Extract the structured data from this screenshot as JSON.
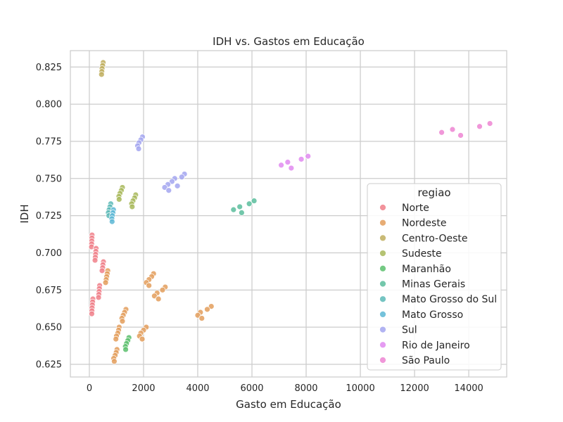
{
  "chart_data": {
    "type": "scatter",
    "title": "IDH vs. Gastos em Educação",
    "xlabel": "Gasto em Educação",
    "ylabel": "IDH",
    "xlim": [
      -700,
      15400
    ],
    "ylim": [
      0.6165,
      0.836
    ],
    "xticks": [
      0,
      2000,
      4000,
      6000,
      8000,
      10000,
      12000,
      14000
    ],
    "yticks": [
      0.625,
      0.65,
      0.675,
      0.7,
      0.725,
      0.75,
      0.775,
      0.8,
      0.825
    ],
    "ytick_labels": [
      "0.625",
      "0.650",
      "0.675",
      "0.700",
      "0.725",
      "0.750",
      "0.775",
      "0.800",
      "0.825"
    ],
    "grid": true,
    "legend": {
      "title": "regiao",
      "placement": "lower-right"
    },
    "series": [
      {
        "name": "Norte",
        "color": "#f0808a",
        "points": [
          [
            100,
            0.712
          ],
          [
            95,
            0.71
          ],
          [
            90,
            0.708
          ],
          [
            85,
            0.706
          ],
          [
            80,
            0.704
          ],
          [
            250,
            0.703
          ],
          [
            240,
            0.701
          ],
          [
            230,
            0.699
          ],
          [
            220,
            0.697
          ],
          [
            210,
            0.695
          ],
          [
            520,
            0.694
          ],
          [
            500,
            0.692
          ],
          [
            490,
            0.69
          ],
          [
            470,
            0.688
          ],
          [
            380,
            0.678
          ],
          [
            370,
            0.676
          ],
          [
            360,
            0.674
          ],
          [
            350,
            0.672
          ],
          [
            340,
            0.67
          ],
          [
            130,
            0.669
          ],
          [
            120,
            0.667
          ],
          [
            110,
            0.665
          ],
          [
            100,
            0.663
          ],
          [
            95,
            0.661
          ],
          [
            90,
            0.659
          ]
        ]
      },
      {
        "name": "Nordeste",
        "color": "#e39e5c",
        "points": [
          [
            680,
            0.688
          ],
          [
            660,
            0.686
          ],
          [
            640,
            0.684
          ],
          [
            620,
            0.682
          ],
          [
            600,
            0.68
          ],
          [
            2370,
            0.686
          ],
          [
            2300,
            0.684
          ],
          [
            2200,
            0.682
          ],
          [
            2100,
            0.68
          ],
          [
            2200,
            0.678
          ],
          [
            2800,
            0.677
          ],
          [
            2700,
            0.675
          ],
          [
            2500,
            0.673
          ],
          [
            2400,
            0.671
          ],
          [
            2550,
            0.669
          ],
          [
            1350,
            0.662
          ],
          [
            1300,
            0.66
          ],
          [
            1250,
            0.658
          ],
          [
            1200,
            0.656
          ],
          [
            1220,
            0.654
          ],
          [
            1100,
            0.65
          ],
          [
            1080,
            0.648
          ],
          [
            1050,
            0.646
          ],
          [
            1000,
            0.644
          ],
          [
            980,
            0.642
          ],
          [
            4500,
            0.664
          ],
          [
            4350,
            0.662
          ],
          [
            4100,
            0.66
          ],
          [
            4000,
            0.658
          ],
          [
            4150,
            0.656
          ],
          [
            2100,
            0.65
          ],
          [
            2000,
            0.648
          ],
          [
            1900,
            0.646
          ],
          [
            1850,
            0.644
          ],
          [
            1950,
            0.642
          ],
          [
            1020,
            0.635
          ],
          [
            990,
            0.633
          ],
          [
            950,
            0.631
          ],
          [
            900,
            0.629
          ],
          [
            920,
            0.627
          ]
        ]
      },
      {
        "name": "Centro-Oeste",
        "color": "#c0ae5e",
        "points": [
          [
            510,
            0.828
          ],
          [
            490,
            0.826
          ],
          [
            470,
            0.824
          ],
          [
            460,
            0.822
          ],
          [
            450,
            0.82
          ]
        ]
      },
      {
        "name": "Sudeste",
        "color": "#a8b85b",
        "points": [
          [
            1220,
            0.744
          ],
          [
            1180,
            0.742
          ],
          [
            1130,
            0.74
          ],
          [
            1090,
            0.738
          ],
          [
            1100,
            0.736
          ],
          [
            1710,
            0.739
          ],
          [
            1670,
            0.737
          ],
          [
            1610,
            0.735
          ],
          [
            1560,
            0.733
          ],
          [
            1580,
            0.731
          ]
        ]
      },
      {
        "name": "Maranhão",
        "color": "#5cbf6d",
        "points": [
          [
            1460,
            0.643
          ],
          [
            1420,
            0.641
          ],
          [
            1370,
            0.639
          ],
          [
            1330,
            0.637
          ],
          [
            1340,
            0.635
          ]
        ]
      },
      {
        "name": "Minas Gerais",
        "color": "#5bbd9c",
        "points": [
          [
            6080,
            0.735
          ],
          [
            5900,
            0.733
          ],
          [
            5550,
            0.731
          ],
          [
            5320,
            0.729
          ],
          [
            5620,
            0.727
          ]
        ]
      },
      {
        "name": "Mato Grosso do Sul",
        "color": "#5dbab7",
        "points": [
          [
            790,
            0.733
          ],
          [
            760,
            0.731
          ],
          [
            730,
            0.729
          ],
          [
            700,
            0.727
          ],
          [
            720,
            0.725
          ]
        ]
      },
      {
        "name": "Mato Grosso",
        "color": "#5db7d5",
        "points": [
          [
            890,
            0.729
          ],
          [
            870,
            0.727
          ],
          [
            850,
            0.725
          ],
          [
            830,
            0.723
          ],
          [
            840,
            0.721
          ]
        ]
      },
      {
        "name": "Sul",
        "color": "#a3a6f0",
        "points": [
          [
            1960,
            0.778
          ],
          [
            1900,
            0.776
          ],
          [
            1830,
            0.774
          ],
          [
            1780,
            0.772
          ],
          [
            1820,
            0.77
          ],
          [
            3510,
            0.753
          ],
          [
            3410,
            0.751
          ],
          [
            3150,
            0.75
          ],
          [
            3050,
            0.748
          ],
          [
            3250,
            0.745
          ],
          [
            2900,
            0.746
          ],
          [
            2780,
            0.744
          ],
          [
            2930,
            0.742
          ]
        ]
      },
      {
        "name": "Rio de Janeiro",
        "color": "#e08af0",
        "points": [
          [
            8070,
            0.765
          ],
          [
            7820,
            0.763
          ],
          [
            7320,
            0.761
          ],
          [
            7080,
            0.759
          ],
          [
            7450,
            0.757
          ]
        ]
      },
      {
        "name": "São Paulo",
        "color": "#ed85d2",
        "points": [
          [
            14780,
            0.787
          ],
          [
            14400,
            0.785
          ],
          [
            13400,
            0.783
          ],
          [
            13000,
            0.781
          ],
          [
            13700,
            0.779
          ]
        ]
      }
    ]
  }
}
